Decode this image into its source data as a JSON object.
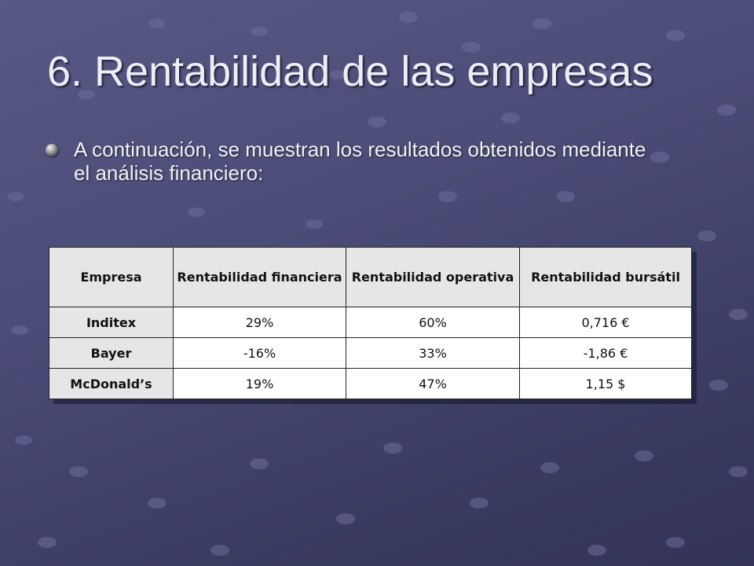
{
  "slide": {
    "title": "6. Rentabilidad de las empresas",
    "bullet": "A continuación, se muestran los resultados obtenidos mediante el análisis financiero:"
  },
  "table": {
    "headers": [
      "Empresa",
      "Rentabilidad financiera",
      "Rentabilidad operativa",
      "Rentabilidad bursátil"
    ],
    "rows": [
      [
        "Inditex",
        "29%",
        "60%",
        "0,716 €"
      ],
      [
        "Bayer",
        "-16%",
        "33%",
        "-1,86 €"
      ],
      [
        "McDonald’s",
        "19%",
        "47%",
        "1,15 $"
      ]
    ]
  },
  "theme": {
    "background": "#4b4c77",
    "dot_color": "#6c6d99",
    "table_header_bg": "#e6e6e6",
    "bullet_icon": "sphere-bullet-icon"
  }
}
